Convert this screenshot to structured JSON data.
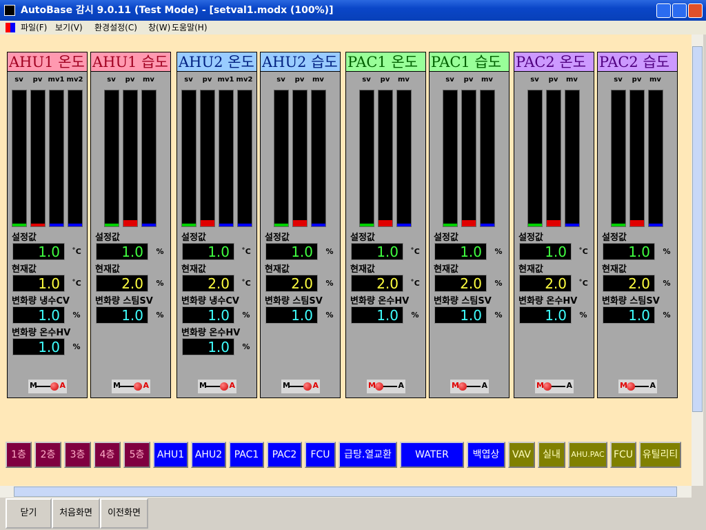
{
  "window": {
    "title": "AutoBase 감시 9.0.11 (Test Mode) - [setval1.modx (100%)]"
  },
  "menu": [
    "파일(F)",
    "보기(V)",
    "환경설정(C)",
    "창(W)",
    "도움말(H)"
  ],
  "panels": [
    {
      "title": "AHU1 온도",
      "title_bg": "#ff99b0",
      "title_color": "#a00020",
      "bars": [
        "sv",
        "pv",
        "mv1",
        "mv2"
      ],
      "fields": [
        {
          "label": "설정값",
          "value": "1.0",
          "unit": "˚C"
        },
        {
          "label": "현재값",
          "value": "1.0",
          "unit": "˚C"
        },
        {
          "label": "변화량 냉수CV",
          "value": "1.0",
          "unit": "%"
        },
        {
          "label": "변화량 온수HV",
          "value": "1.0",
          "unit": "%"
        }
      ],
      "switch": {
        "left": "M",
        "right": "A",
        "auto": true
      }
    },
    {
      "title": "AHU1 습도",
      "title_bg": "#ff99b0",
      "title_color": "#a00020",
      "bars": [
        "sv",
        "pv",
        "mv"
      ],
      "fields": [
        {
          "label": "설정값",
          "value": "1.0",
          "unit": "%"
        },
        {
          "label": "현재값",
          "value": "2.0",
          "unit": "%"
        },
        {
          "label": "변화량 스팀SV",
          "value": "1.0",
          "unit": "%"
        }
      ],
      "switch": {
        "left": "M",
        "right": "A",
        "auto": true
      }
    },
    {
      "title": "AHU2 온도",
      "title_bg": "#99ccff",
      "title_color": "#002080",
      "bars": [
        "sv",
        "pv",
        "mv1",
        "mv2"
      ],
      "fields": [
        {
          "label": "설정값",
          "value": "1.0",
          "unit": "˚C"
        },
        {
          "label": "현재값",
          "value": "2.0",
          "unit": "˚C"
        },
        {
          "label": "변화량 냉수CV",
          "value": "1.0",
          "unit": "%"
        },
        {
          "label": "변화량 온수HV",
          "value": "1.0",
          "unit": "%"
        }
      ],
      "switch": {
        "left": "M",
        "right": "A",
        "auto": true
      }
    },
    {
      "title": "AHU2 습도",
      "title_bg": "#99ccff",
      "title_color": "#002080",
      "bars": [
        "sv",
        "pv",
        "mv"
      ],
      "fields": [
        {
          "label": "설정값",
          "value": "1.0",
          "unit": "%"
        },
        {
          "label": "현재값",
          "value": "2.0",
          "unit": "%"
        },
        {
          "label": "변화량 스팀SV",
          "value": "1.0",
          "unit": "%"
        }
      ],
      "switch": {
        "left": "M",
        "right": "A",
        "auto": true
      }
    },
    {
      "title": "PAC1 온도",
      "title_bg": "#99ff99",
      "title_color": "#006000",
      "bars": [
        "sv",
        "pv",
        "mv"
      ],
      "fields": [
        {
          "label": "설정값",
          "value": "1.0",
          "unit": "˚C"
        },
        {
          "label": "현재값",
          "value": "2.0",
          "unit": "˚C"
        },
        {
          "label": "변화량 온수HV",
          "value": "1.0",
          "unit": "%"
        }
      ],
      "switch": {
        "left": "M",
        "right": "A",
        "auto": false
      }
    },
    {
      "title": "PAC1 습도",
      "title_bg": "#99ff99",
      "title_color": "#006000",
      "bars": [
        "sv",
        "pv",
        "mv"
      ],
      "fields": [
        {
          "label": "설정값",
          "value": "1.0",
          "unit": "%"
        },
        {
          "label": "현재값",
          "value": "2.0",
          "unit": "%"
        },
        {
          "label": "변화량 스팀SV",
          "value": "1.0",
          "unit": "%"
        }
      ],
      "switch": {
        "left": "M",
        "right": "A",
        "auto": false
      }
    },
    {
      "title": "PAC2 온도",
      "title_bg": "#cc99ff",
      "title_color": "#500080",
      "bars": [
        "sv",
        "pv",
        "mv"
      ],
      "fields": [
        {
          "label": "설정값",
          "value": "1.0",
          "unit": "˚C"
        },
        {
          "label": "현재값",
          "value": "2.0",
          "unit": "˚C"
        },
        {
          "label": "변화량 온수HV",
          "value": "1.0",
          "unit": "%"
        }
      ],
      "switch": {
        "left": "M",
        "right": "A",
        "auto": false
      }
    },
    {
      "title": "PAC2 습도",
      "title_bg": "#cc99ff",
      "title_color": "#500080",
      "bars": [
        "sv",
        "pv",
        "mv"
      ],
      "fields": [
        {
          "label": "설정값",
          "value": "1.0",
          "unit": "%"
        },
        {
          "label": "현재값",
          "value": "2.0",
          "unit": "%"
        },
        {
          "label": "변화량 스팀SV",
          "value": "1.0",
          "unit": "%"
        }
      ],
      "switch": {
        "left": "M",
        "right": "A",
        "auto": false
      }
    }
  ],
  "nav_groups": [
    {
      "bg": "#800040",
      "color": "#ffb0c8",
      "buttons": [
        "1층",
        "2층",
        "3층",
        "4층",
        "5층"
      ]
    },
    {
      "bg": "#0000ff",
      "color": "#ffffff",
      "buttons": [
        "AHU1",
        "AHU2",
        "PAC1",
        "PAC2",
        "FCU",
        "급탕.열교환",
        "WATER",
        "백엽상"
      ]
    },
    {
      "bg": "#808000",
      "color": "#ffffc0",
      "buttons": [
        "VAV",
        "실내",
        "AHU.PAC",
        "FCU",
        "유틸리티"
      ]
    }
  ],
  "footer": [
    "닫기",
    "처음화면",
    "이전화면"
  ]
}
